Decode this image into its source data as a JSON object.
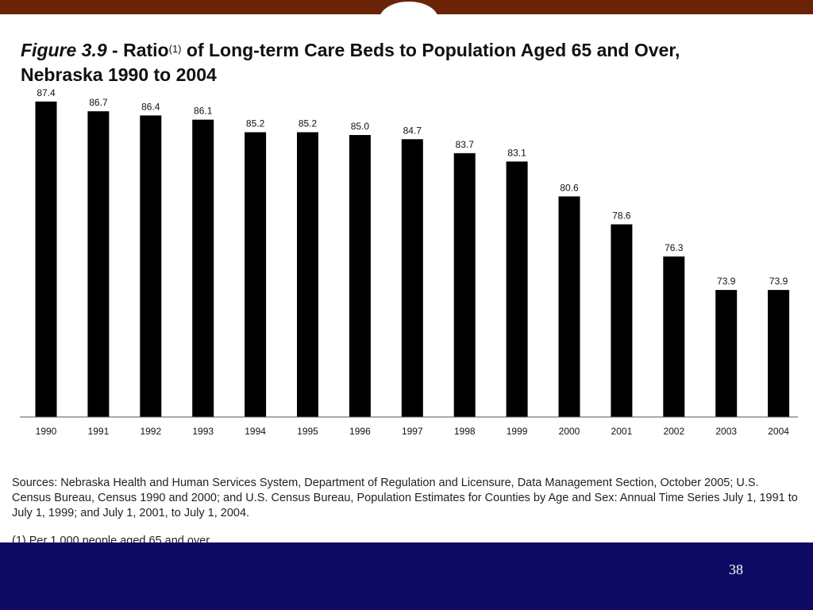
{
  "slide": {
    "title_figure": "Figure 3.9",
    "title_sep": " - Ratio",
    "title_sup": "(1)",
    "title_rest": " of Long-term Care Beds to Population Aged 65 and Over,",
    "title_line2": "Nebraska 1990 to 2004",
    "sources": "Sources: Nebraska Health and Human Services System, Department of Regulation and Licensure, Data Management Section, October 2005; U.S. Census Bureau, Census 1990 and 2000; and U.S. Census Bureau, Population Estimates for Counties by Age and Sex: Annual Time Series July 1, 1991 to July 1, 1999; and July 1, 2001, to July 1, 2004.",
    "footnote": "(1) Per 1,000 people aged 65 and over.",
    "page_number": "38"
  },
  "colors": {
    "top_bar": "#6b2308",
    "bottom_band": "#0d0a63",
    "bar": "#000000"
  },
  "chart_data": {
    "type": "bar",
    "title": "Figure 3.9 - Ratio(1) of Long-term Care Beds to Population Aged 65 and Over, Nebraska 1990 to 2004",
    "categories": [
      "1990",
      "1991",
      "1992",
      "1993",
      "1994",
      "1995",
      "1996",
      "1997",
      "1998",
      "1999",
      "2000",
      "2001",
      "2002",
      "2003",
      "2004"
    ],
    "values": [
      87.4,
      86.7,
      86.4,
      86.1,
      85.2,
      85.2,
      85.0,
      84.7,
      83.7,
      83.1,
      80.6,
      78.6,
      76.3,
      73.9,
      73.9
    ],
    "value_labels": [
      "87.4",
      "86.7",
      "86.4",
      "86.1",
      "85.2",
      "85.2",
      "85.0",
      "84.7",
      "83.7",
      "83.1",
      "80.6",
      "78.6",
      "76.3",
      "73.9",
      "73.9"
    ],
    "xlabel": "",
    "ylabel": "",
    "ylim": [
      64.8,
      88.3
    ],
    "grid": false,
    "legend": "none"
  }
}
